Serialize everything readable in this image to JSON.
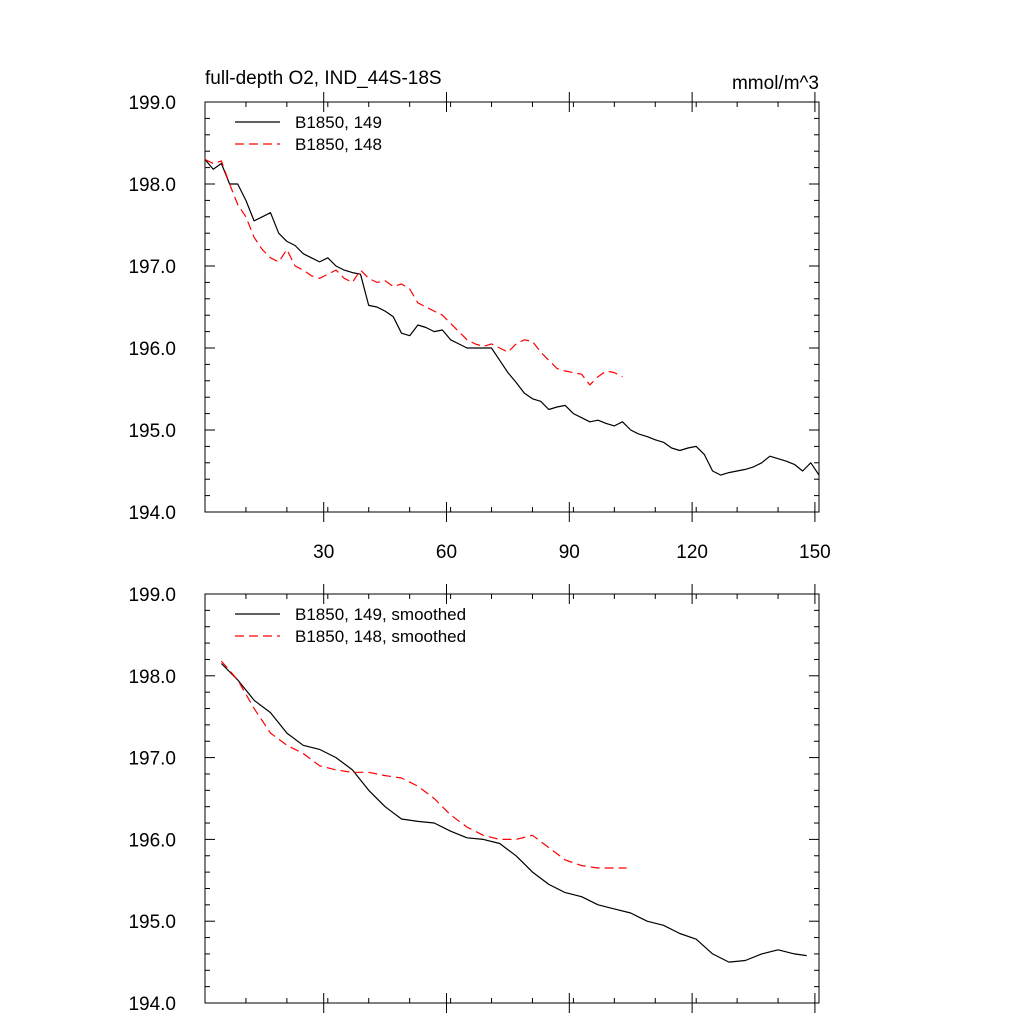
{
  "colors": {
    "background": "#ffffff",
    "axis": "#000000",
    "series149": "#000000",
    "series148": "#ff0000"
  },
  "chart_data": [
    {
      "type": "line",
      "title": "full-depth O2, IND_44S-18S",
      "units": "mmol/m^3",
      "xlabel": "",
      "ylabel": "",
      "xlim": [
        1,
        151
      ],
      "ylim": [
        194.0,
        199.0
      ],
      "x_ticks": [
        30,
        60,
        90,
        120,
        150
      ],
      "x_tick_labels": [
        "30",
        "60",
        "90",
        "120",
        "150"
      ],
      "y_ticks": [
        194.0,
        195.0,
        196.0,
        197.0,
        198.0,
        199.0
      ],
      "y_tick_labels": [
        "194.0",
        "195.0",
        "196.0",
        "197.0",
        "198.0",
        "199.0"
      ],
      "legend_position": "top-left",
      "series": [
        {
          "name": "B1850, 149",
          "color": "#000000",
          "dash": "solid",
          "x": [
            1,
            3,
            5,
            7,
            9,
            11,
            13,
            15,
            17,
            19,
            21,
            23,
            25,
            27,
            29,
            31,
            33,
            35,
            37,
            39,
            41,
            43,
            45,
            47,
            49,
            51,
            53,
            55,
            57,
            59,
            61,
            63,
            65,
            67,
            69,
            71,
            73,
            75,
            77,
            79,
            81,
            83,
            85,
            87,
            89,
            91,
            93,
            95,
            97,
            99,
            101,
            103,
            105,
            107,
            109,
            111,
            113,
            115,
            117,
            119,
            121,
            123,
            125,
            127,
            129,
            131,
            133,
            135,
            137,
            139,
            141,
            143,
            145,
            147,
            149,
            151
          ],
          "y": [
            198.3,
            198.18,
            198.25,
            198.0,
            198.0,
            197.8,
            197.55,
            197.6,
            197.65,
            197.4,
            197.3,
            197.25,
            197.15,
            197.1,
            197.05,
            197.1,
            197.0,
            196.95,
            196.92,
            196.9,
            196.52,
            196.5,
            196.45,
            196.38,
            196.18,
            196.15,
            196.28,
            196.25,
            196.2,
            196.22,
            196.1,
            196.05,
            196.0,
            196.0,
            196.0,
            196.0,
            195.85,
            195.7,
            195.58,
            195.45,
            195.38,
            195.35,
            195.25,
            195.28,
            195.3,
            195.2,
            195.15,
            195.1,
            195.12,
            195.08,
            195.05,
            195.1,
            195.0,
            194.95,
            194.92,
            194.88,
            194.85,
            194.78,
            194.75,
            194.78,
            194.8,
            194.7,
            194.5,
            194.45,
            194.48,
            194.5,
            194.52,
            194.55,
            194.6,
            194.68,
            194.65,
            194.62,
            194.58,
            194.5,
            194.6,
            194.45
          ]
        },
        {
          "name": "B1850, 148",
          "color": "#ff0000",
          "dash": "dashed",
          "x": [
            1,
            3,
            5,
            7,
            9,
            11,
            13,
            15,
            17,
            19,
            21,
            23,
            25,
            27,
            29,
            31,
            33,
            35,
            37,
            39,
            41,
            43,
            45,
            47,
            49,
            51,
            53,
            55,
            57,
            59,
            61,
            63,
            65,
            67,
            69,
            71,
            73,
            75,
            77,
            79,
            81,
            83,
            85,
            87,
            89,
            91,
            93,
            95,
            97,
            99,
            101,
            103
          ],
          "y": [
            198.3,
            198.25,
            198.28,
            198.0,
            197.75,
            197.6,
            197.35,
            197.2,
            197.1,
            197.05,
            197.2,
            197.0,
            196.95,
            196.88,
            196.85,
            196.9,
            196.95,
            196.85,
            196.8,
            196.95,
            196.85,
            196.8,
            196.82,
            196.75,
            196.78,
            196.72,
            196.55,
            196.5,
            196.45,
            196.4,
            196.3,
            196.2,
            196.1,
            196.05,
            196.02,
            196.05,
            196.0,
            195.95,
            196.05,
            196.1,
            196.08,
            195.95,
            195.85,
            195.75,
            195.72,
            195.7,
            195.68,
            195.55,
            195.65,
            195.72,
            195.7,
            195.65
          ]
        }
      ]
    },
    {
      "type": "line",
      "title": "",
      "xlabel": "",
      "ylabel": "",
      "xlim": [
        1,
        151
      ],
      "ylim": [
        194.0,
        199.0
      ],
      "x_ticks": [
        30,
        60,
        90,
        120,
        150
      ],
      "y_ticks": [
        194.0,
        195.0,
        196.0,
        197.0,
        198.0,
        199.0
      ],
      "y_tick_labels": [
        "194.0",
        "195.0",
        "196.0",
        "197.0",
        "198.0",
        "199.0"
      ],
      "legend_position": "top-left",
      "series": [
        {
          "name": "B1850, 149, smoothed",
          "color": "#000000",
          "dash": "solid",
          "x": [
            5,
            9,
            13,
            17,
            21,
            25,
            29,
            33,
            37,
            41,
            45,
            49,
            53,
            57,
            61,
            65,
            69,
            73,
            77,
            81,
            85,
            89,
            93,
            97,
            101,
            105,
            109,
            113,
            117,
            121,
            125,
            129,
            133,
            137,
            141,
            145,
            148
          ],
          "y": [
            198.15,
            197.95,
            197.7,
            197.55,
            197.3,
            197.15,
            197.1,
            197.0,
            196.85,
            196.6,
            196.4,
            196.25,
            196.22,
            196.2,
            196.1,
            196.02,
            196.0,
            195.95,
            195.8,
            195.6,
            195.45,
            195.35,
            195.3,
            195.2,
            195.15,
            195.1,
            195.0,
            194.95,
            194.85,
            194.78,
            194.6,
            194.5,
            194.52,
            194.6,
            194.65,
            194.6,
            194.58
          ]
        },
        {
          "name": "B1850, 148, smoothed",
          "color": "#ff0000",
          "dash": "dashed",
          "x": [
            5,
            9,
            13,
            17,
            21,
            25,
            29,
            33,
            37,
            41,
            45,
            49,
            53,
            57,
            61,
            65,
            69,
            73,
            77,
            81,
            85,
            89,
            93,
            97,
            101,
            104
          ],
          "y": [
            198.18,
            197.95,
            197.6,
            197.3,
            197.15,
            197.05,
            196.9,
            196.85,
            196.82,
            196.82,
            196.78,
            196.75,
            196.65,
            196.5,
            196.3,
            196.15,
            196.05,
            196.0,
            196.0,
            196.05,
            195.9,
            195.75,
            195.68,
            195.65,
            195.65,
            195.65
          ]
        }
      ]
    }
  ]
}
